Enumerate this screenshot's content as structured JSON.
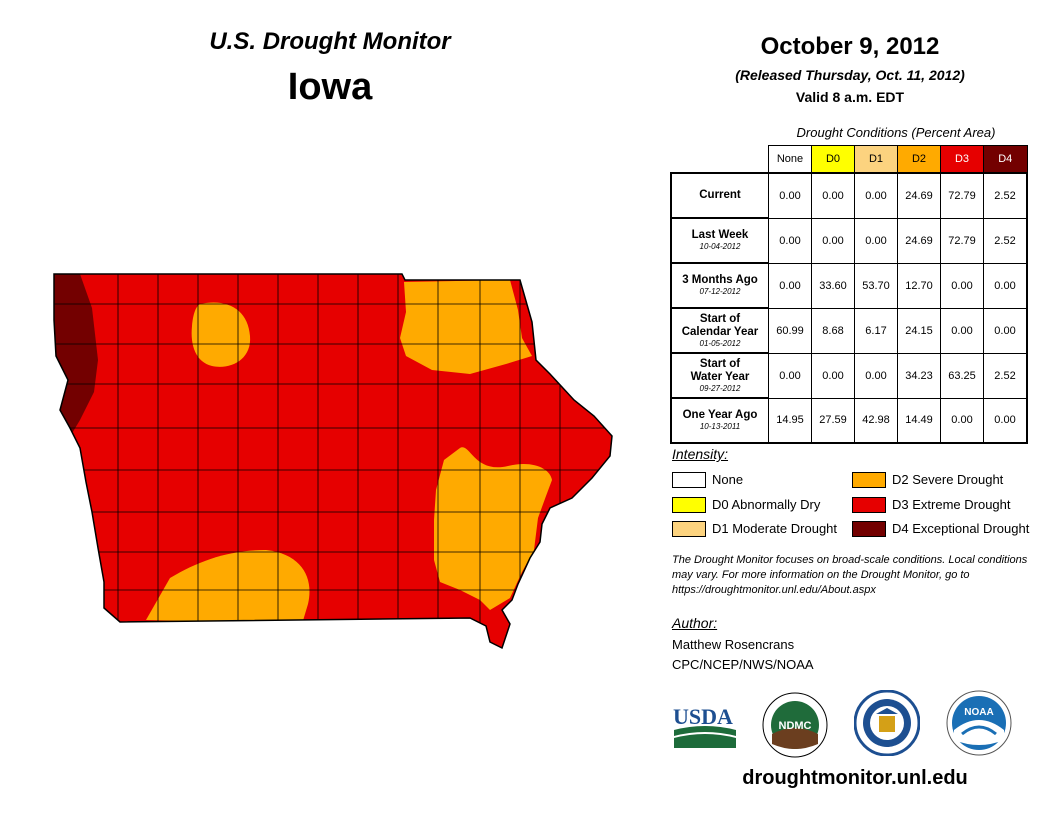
{
  "header": {
    "monitor_title": "U.S. Drought Monitor",
    "state": "Iowa",
    "date": "October 9, 2012",
    "released": "(Released Thursday, Oct. 11, 2012)",
    "valid": "Valid 8 a.m. EDT"
  },
  "table": {
    "caption": "Drought Conditions (Percent Area)",
    "columns": [
      {
        "label": "None",
        "color": "#ffffff",
        "text_color": "#000000"
      },
      {
        "label": "D0",
        "color": "#ffff00",
        "text_color": "#000000"
      },
      {
        "label": "D1",
        "color": "#fcd37f",
        "text_color": "#000000"
      },
      {
        "label": "D2",
        "color": "#ffaa00",
        "text_color": "#000000"
      },
      {
        "label": "D3",
        "color": "#e60000",
        "text_color": "#ffffff"
      },
      {
        "label": "D4",
        "color": "#730000",
        "text_color": "#ffffff"
      }
    ],
    "rows": [
      {
        "label": [
          "Current"
        ],
        "date": "",
        "values": [
          "0.00",
          "0.00",
          "0.00",
          "24.69",
          "72.79",
          "2.52"
        ]
      },
      {
        "label": [
          "Last Week"
        ],
        "date": "10-04-2012",
        "values": [
          "0.00",
          "0.00",
          "0.00",
          "24.69",
          "72.79",
          "2.52"
        ]
      },
      {
        "label": [
          "3 Months Ago"
        ],
        "date": "07-12-2012",
        "values": [
          "0.00",
          "33.60",
          "53.70",
          "12.70",
          "0.00",
          "0.00"
        ]
      },
      {
        "label": [
          "Start of",
          "Calendar Year"
        ],
        "date": "01-05-2012",
        "values": [
          "60.99",
          "8.68",
          "6.17",
          "24.15",
          "0.00",
          "0.00"
        ]
      },
      {
        "label": [
          "Start of",
          "Water Year"
        ],
        "date": "09-27-2012",
        "values": [
          "0.00",
          "0.00",
          "0.00",
          "34.23",
          "63.25",
          "2.52"
        ]
      },
      {
        "label": [
          "One Year Ago"
        ],
        "date": "10-13-2011",
        "values": [
          "14.95",
          "27.59",
          "42.98",
          "14.49",
          "0.00",
          "0.00"
        ]
      }
    ]
  },
  "legend": {
    "title": "Intensity:",
    "items": [
      {
        "label": "None",
        "color": "#ffffff"
      },
      {
        "label": "D0 Abnormally Dry",
        "color": "#ffff00"
      },
      {
        "label": "D1 Moderate Drought",
        "color": "#fcd37f"
      },
      {
        "label": "D2 Severe Drought",
        "color": "#ffaa00"
      },
      {
        "label": "D3 Extreme Drought",
        "color": "#e60000"
      },
      {
        "label": "D4 Exceptional Drought",
        "color": "#730000"
      }
    ]
  },
  "note": "The Drought Monitor focuses on broad-scale conditions. Local conditions may vary. For more information on the Drought Monitor, go to https://droughtmonitor.unl.edu/About.aspx",
  "author": {
    "label": "Author:",
    "name": "Matthew Rosencrans",
    "org": "CPC/NCEP/NWS/NOAA"
  },
  "logos": {
    "usda": "USDA",
    "ndmc": "NDMC",
    "noaa": "NOAA"
  },
  "website": "droughtmonitor.unl.edu",
  "colors": {
    "d2": "#ffaa00",
    "d3": "#e60000",
    "d4": "#730000",
    "county_line": "#000000"
  }
}
